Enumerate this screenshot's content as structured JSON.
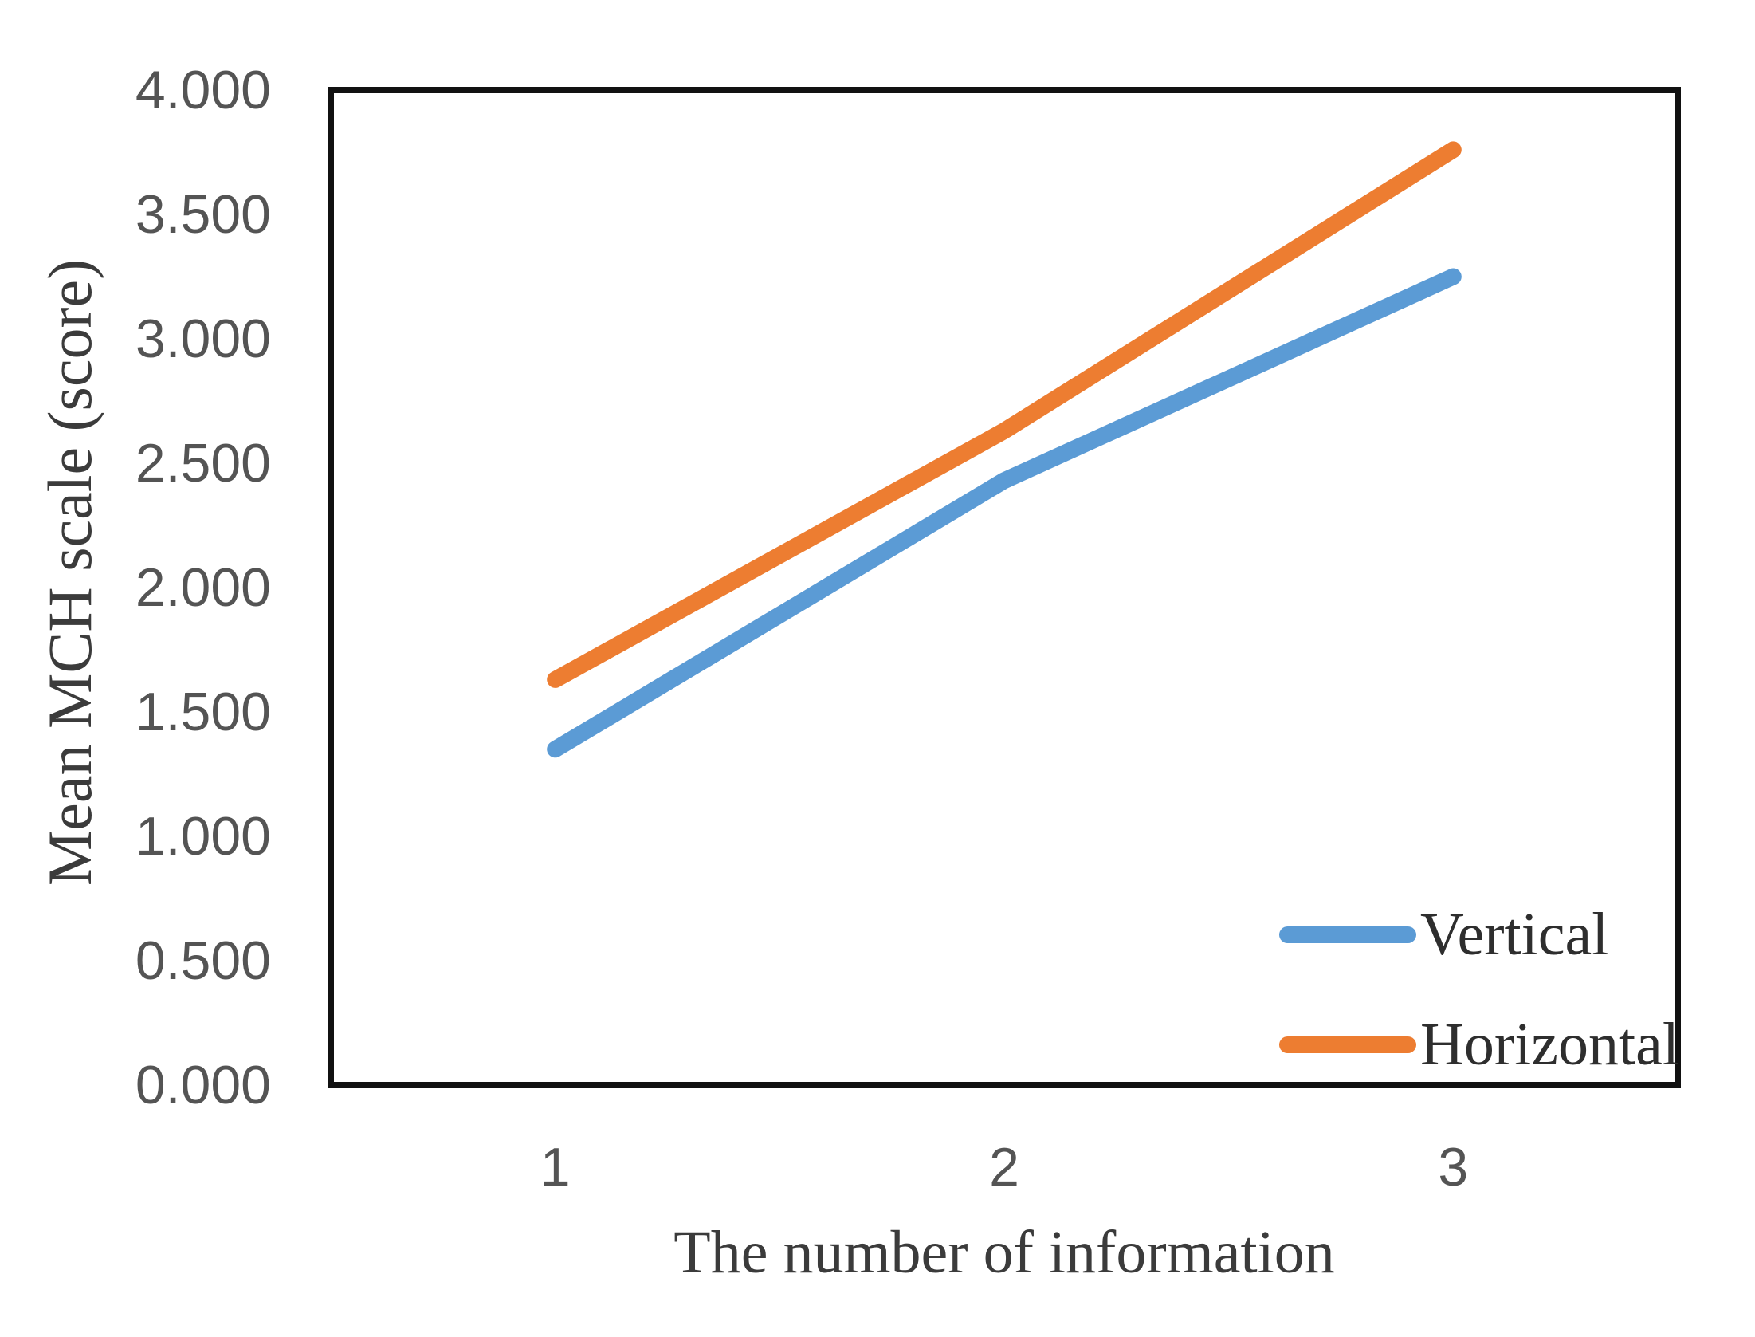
{
  "figure": {
    "background": "#ffffff",
    "border_color": "#111111"
  },
  "chart_data": {
    "type": "line",
    "title": "",
    "xlabel": "The number of information",
    "ylabel": "Mean MCH scale (score)",
    "categories": [
      "1",
      "2",
      "3"
    ],
    "series": [
      {
        "name": "Vertical",
        "color": "#5B9BD5",
        "values": [
          1.35,
          2.43,
          3.25
        ]
      },
      {
        "name": "Horizontal",
        "color": "#ED7D31",
        "values": [
          1.63,
          2.63,
          3.76
        ]
      }
    ],
    "ylim": [
      0,
      4
    ],
    "ytick_step": 0.5,
    "yticks": [
      "4.000",
      "3.500",
      "3.000",
      "2.500",
      "2.000",
      "1.500",
      "1.000",
      "0.500",
      "0.000"
    ],
    "grid": false,
    "legend_position": "inside-bottom-right"
  }
}
